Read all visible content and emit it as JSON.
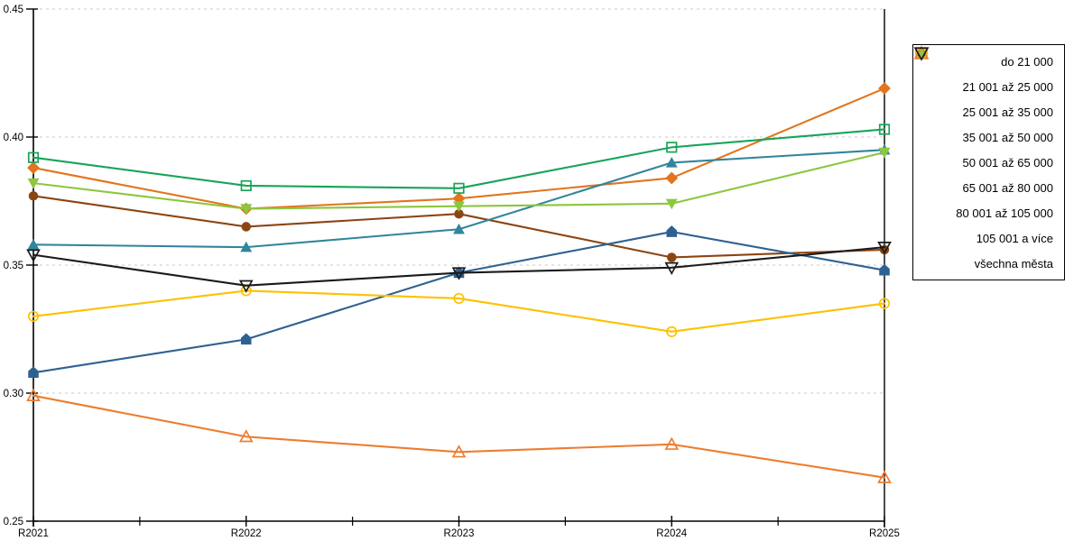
{
  "chart_data": {
    "type": "line",
    "title": "",
    "xlabel": "",
    "ylabel": "",
    "x": [
      "R2021",
      "R2022",
      "R2023",
      "R2024",
      "R2025"
    ],
    "ylim": [
      0.25,
      0.45
    ],
    "yticks": [
      0.25,
      0.3,
      0.35,
      0.4,
      0.45
    ],
    "ytick_labels": [
      "0.25",
      "0.30",
      "0.35",
      "0.40",
      "0.45"
    ],
    "grid": "horizontal-dashed",
    "grid_color": "#c9c9c9",
    "axis_color": "#000000",
    "legend_position": "right",
    "series": [
      {
        "name": "do 21 000",
        "marker": "diamond",
        "filled": true,
        "color": "#e2751d",
        "values": [
          0.388,
          0.372,
          0.376,
          0.384,
          0.419
        ]
      },
      {
        "name": "21 001 až 25 000",
        "marker": "circle",
        "filled": true,
        "color": "#8b4513",
        "values": [
          0.377,
          0.365,
          0.37,
          0.353,
          0.356
        ]
      },
      {
        "name": "25 001 až 35 000",
        "marker": "triangle-up",
        "filled": true,
        "color": "#31859c",
        "values": [
          0.358,
          0.357,
          0.364,
          0.39,
          0.395
        ]
      },
      {
        "name": "35 001 až 50 000",
        "marker": "pentagon",
        "filled": true,
        "color": "#2e6191",
        "values": [
          0.308,
          0.321,
          0.347,
          0.363,
          0.348
        ]
      },
      {
        "name": "50 001 až 65 000",
        "marker": "triangle-down",
        "filled": true,
        "color": "#8dc63f",
        "values": [
          0.382,
          0.372,
          0.373,
          0.374,
          0.394
        ]
      },
      {
        "name": "65 001 až 80 000",
        "marker": "square",
        "filled": false,
        "color": "#18a458",
        "values": [
          0.392,
          0.381,
          0.38,
          0.396,
          0.403
        ]
      },
      {
        "name": "80 001 až 105 000",
        "marker": "circle",
        "filled": false,
        "color": "#fdc100",
        "values": [
          0.33,
          0.34,
          0.337,
          0.324,
          0.335
        ]
      },
      {
        "name": "105 001 a více",
        "marker": "triangle-up",
        "filled": false,
        "color": "#ed7d31",
        "values": [
          0.299,
          0.283,
          0.277,
          0.28,
          0.267
        ]
      },
      {
        "name": "všechna města",
        "marker": "triangle-down",
        "filled": false,
        "color": "#1a1a1a",
        "values": [
          0.354,
          0.342,
          0.347,
          0.349,
          0.357
        ]
      }
    ]
  }
}
